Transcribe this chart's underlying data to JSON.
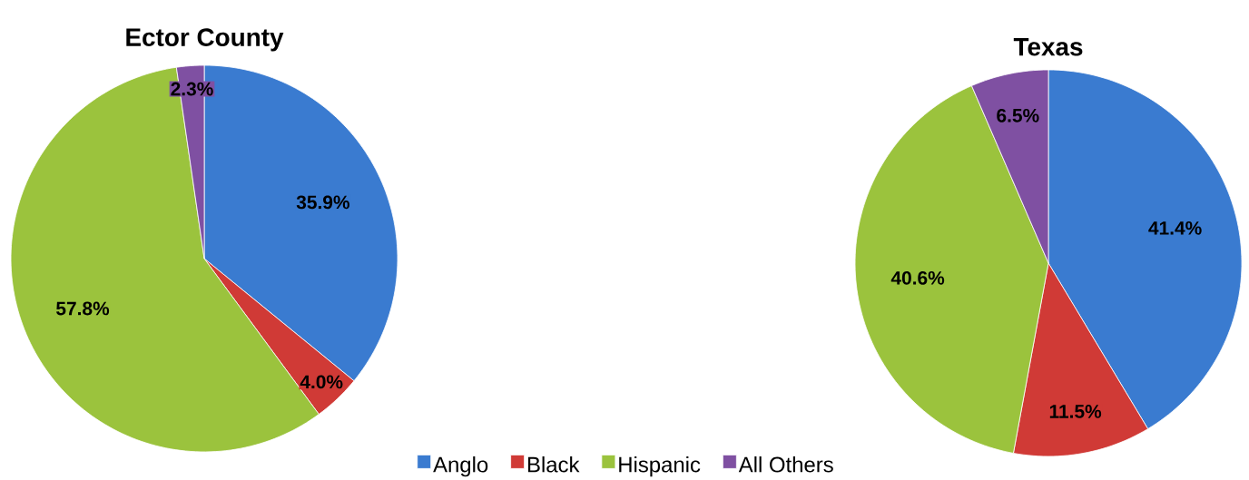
{
  "chart_data": [
    {
      "type": "pie",
      "title": "Ector County",
      "categories": [
        "Anglo",
        "Black",
        "Hispanic",
        "All Others"
      ],
      "values": [
        35.9,
        4.0,
        57.8,
        2.3
      ],
      "value_labels": [
        "35.9%",
        "4.0%",
        "57.8%",
        "2.3%"
      ],
      "colors": [
        "#3a7bd0",
        "#d03a36",
        "#9bc33d",
        "#7f50a2"
      ],
      "legend": "bottom"
    },
    {
      "type": "pie",
      "title": "Texas",
      "categories": [
        null,
        null,
        null,
        null
      ],
      "values": [
        41.4,
        11.5,
        40.6,
        6.5
      ],
      "value_labels": [
        "41.4%",
        "11.5%",
        "40.6%",
        "6.5%"
      ],
      "colors": [
        "#3a7bd0",
        "#d03a36",
        "#9bc33d",
        "#7f50a2"
      ]
    }
  ]
}
